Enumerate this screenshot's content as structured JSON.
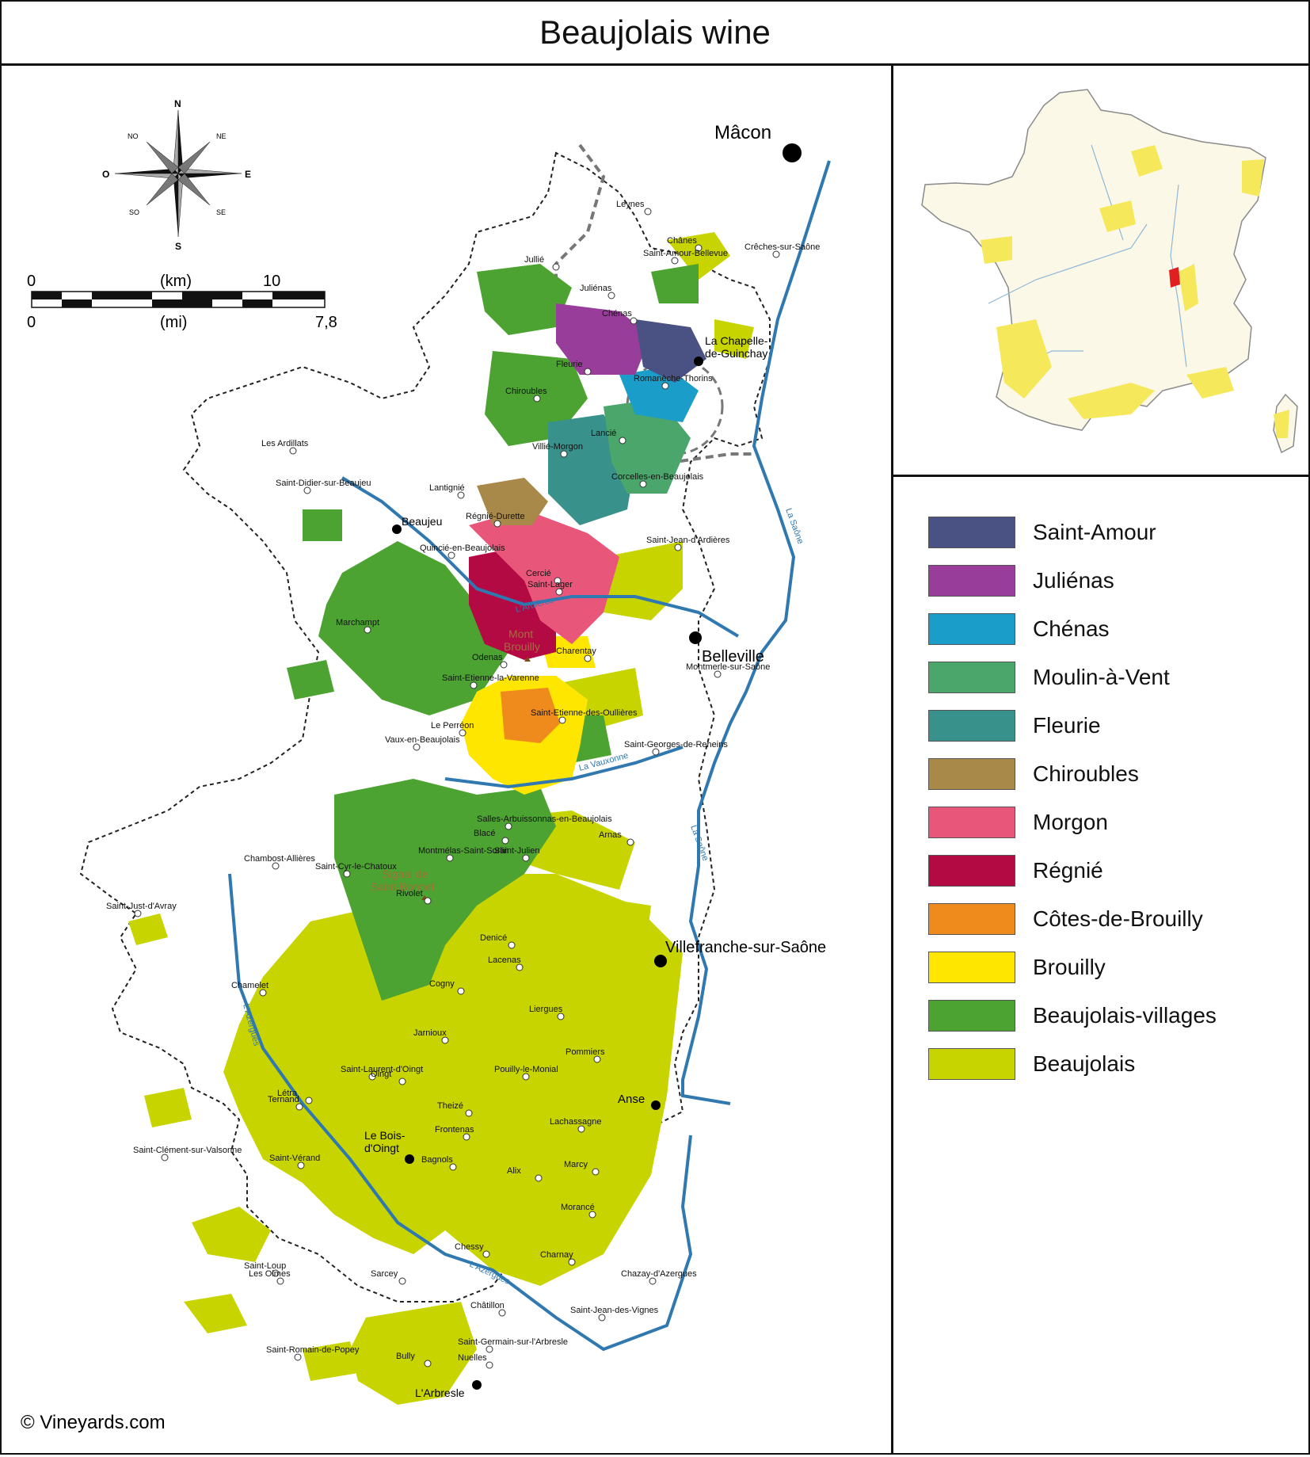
{
  "title": "Beaujolais wine",
  "copyright": "© Vineyards.com",
  "compass": {
    "n": "N",
    "s": "S",
    "e": "E",
    "o": "O",
    "ne": "NE",
    "no": "NO",
    "se": "SE",
    "so": "SO"
  },
  "scale": {
    "km_left": "0",
    "km_label": "(km)",
    "km_right": "10",
    "mi_left": "0",
    "mi_label": "(mi)",
    "mi_right": "7,8"
  },
  "cities": {
    "macon": "Mâcon",
    "belleville": "Belleville",
    "villefranche": "Villefranche-sur-Saône",
    "beaujeu": "Beaujeu",
    "anse": "Anse",
    "bois_doingt_1": "Le Bois-",
    "bois_doingt_2": "d'Oingt",
    "larbresle": "L'Arbresle",
    "chapelle_1": "La Chapelle-",
    "chapelle_2": "de-Guinchay"
  },
  "peaks": {
    "mont_brouilly_1": "Mont",
    "mont_brouilly_2": "Brouilly",
    "signal_1": "Signal de",
    "signal_2": "Saint-Bonnet"
  },
  "rivers": {
    "saone_1": "La Saône",
    "saone_2": "La Saône",
    "ardieres": "L'Ardières",
    "vauxonne": "La Vauxonne",
    "azergues_1": "L'Azergues",
    "azergues_2": "L'Azergues"
  },
  "villages": [
    "Leynes",
    "Chânes",
    "Crêches-sur-Saône",
    "Saint-Amour-Bellevue",
    "Juliénas",
    "Jullié",
    "Chénas",
    "Romanèche-Thorins",
    "Fleurie",
    "Chiroubles",
    "Lancié",
    "Villié-Morgon",
    "Corcelles-en-Beaujolais",
    "Lantignié",
    "Régnié-Durette",
    "Saint-Jean-d'Ardières",
    "Les Ardillats",
    "Saint-Didier-sur-Beaujeu",
    "Quincié-en-Beaujolais",
    "Marchampt",
    "Cercié",
    "Saint-Lager",
    "Odenas",
    "Charentay",
    "Montmerle-sur-Saône",
    "Saint-Etienne-la-Varenne",
    "Saint-Etienne-des-Oullières",
    "Le Perréon",
    "Vaux-en-Beaujolais",
    "Saint-Georges-de-Reneins",
    "Salles-Arbuissonnas-en-Beaujolais",
    "Blacé",
    "Saint-Julien",
    "Arnas",
    "Montmélas-Saint-Sorlin",
    "Saint-Cyr-le-Chatoux",
    "Chambost-Allières",
    "Denicé",
    "Rivolet",
    "Saint-Just-d'Avray",
    "Lacenas",
    "Cogny",
    "Chamelet",
    "Liergues",
    "Jarnioux",
    "Pommiers",
    "Létra",
    "Pouilly-le-Monial",
    "Saint-Laurent-d'Oingt",
    "Oingt",
    "Theizé",
    "Ternand",
    "Lachassagne",
    "Frontenas",
    "Saint-Clément-sur-Valsonne",
    "Saint-Vérand",
    "Marcy",
    "Alix",
    "Bagnols",
    "Morancé",
    "Saint-Loup",
    "Charnay",
    "Chessy",
    "Chazay-d'Azergues",
    "Les Olmes",
    "Sarcey",
    "Châtillon",
    "Saint-Jean-des-Vignes",
    "Saint-Germain-sur-l'Arbresle",
    "Bully",
    "Saint-Romain-de-Popey",
    "Nuelles"
  ],
  "legend": [
    {
      "label": "Saint-Amour",
      "color": "#4a5283"
    },
    {
      "label": "Juliénas",
      "color": "#983d9a"
    },
    {
      "label": "Chénas",
      "color": "#1a9ec9"
    },
    {
      "label": "Moulin-à-Vent",
      "color": "#4aa66a"
    },
    {
      "label": "Fleurie",
      "color": "#38918a"
    },
    {
      "label": "Chiroubles",
      "color": "#a8894a"
    },
    {
      "label": "Morgon",
      "color": "#e8577a"
    },
    {
      "label": "Régnié",
      "color": "#b30a43"
    },
    {
      "label": "Côtes-de-Brouilly",
      "color": "#ef8a1c"
    },
    {
      "label": "Brouilly",
      "color": "#ffe600"
    },
    {
      "label": "Beaujolais-villages",
      "color": "#4ca331"
    },
    {
      "label": "Beaujolais",
      "color": "#c8d400"
    }
  ],
  "colors": {
    "river": "#2f78b0",
    "france_fill": "#fbf8e7",
    "wine_areas": "#f5e85a",
    "beaujolais_marker": "#e02020"
  }
}
